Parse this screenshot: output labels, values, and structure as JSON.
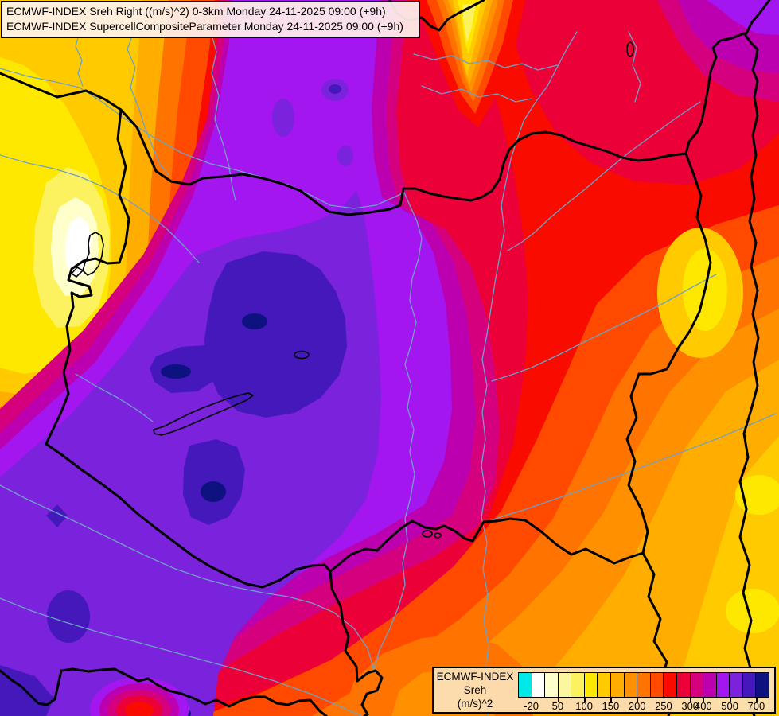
{
  "title_box": {
    "line1": "ECMWF-INDEX Sreh Right ((m/s)^2) 0-3km Monday 24-11-2025 09:00 (+9h)",
    "line2": "ECMWF-INDEX SupercellCompositeParameter Monday 24-11-2025 09:00 (+9h)"
  },
  "legend": {
    "product": "ECMWF-INDEX",
    "parameter": "Sreh",
    "units": "(m/s)^2",
    "swatch_colors": [
      "#00E8E8",
      "#FFFFFF",
      "#FFFFCC",
      "#FAF7A0",
      "#FCF25F",
      "#FFE800",
      "#FFCB00",
      "#FFAE00",
      "#FF9100",
      "#FF7300",
      "#FF4A00",
      "#F90B00",
      "#EC0038",
      "#D4007E",
      "#BC00B0",
      "#A316F0",
      "#7B22DC",
      "#4418BB",
      "#0E1280"
    ],
    "ticks": [
      {
        "label": "-20",
        "pos": 0.0526
      },
      {
        "label": "50",
        "pos": 0.1579
      },
      {
        "label": "100",
        "pos": 0.2632
      },
      {
        "label": "150",
        "pos": 0.3684
      },
      {
        "label": "200",
        "pos": 0.4737
      },
      {
        "label": "250",
        "pos": 0.5789
      },
      {
        "label": "300",
        "pos": 0.6842
      },
      {
        "label": "400",
        "pos": 0.7368
      },
      {
        "label": "500",
        "pos": 0.8421
      },
      {
        "label": "700",
        "pos": 0.9474
      }
    ]
  },
  "map_colors": {
    "border_line": "#000000",
    "river_line": "#6FA0C8",
    "lake_outline": "#000000",
    "field_low": "#FFFFFF",
    "field_high": "#0E1280"
  }
}
